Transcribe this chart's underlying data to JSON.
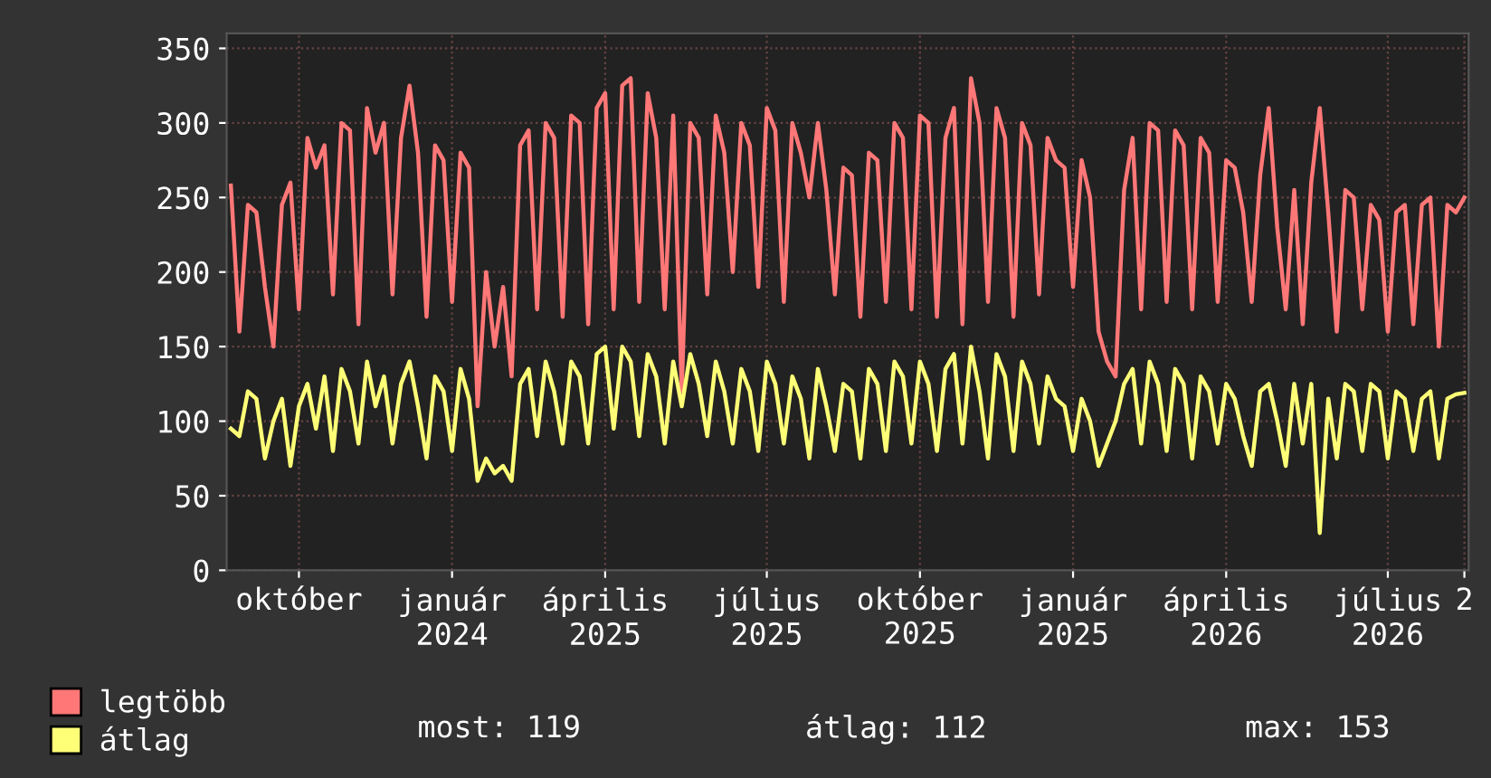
{
  "chart_data": {
    "type": "line",
    "categories": [
      null,
      null,
      null,
      null,
      null,
      null,
      null,
      null,
      "október",
      null,
      null,
      null,
      null,
      null,
      null,
      null,
      null,
      null,
      null,
      null,
      null,
      null,
      null,
      null,
      null,
      null,
      "január\n2024",
      null,
      null,
      null,
      null,
      null,
      null,
      null,
      null,
      null,
      null,
      null,
      null,
      null,
      null,
      null,
      null,
      null,
      "április\n2025",
      null,
      null,
      null,
      null,
      null,
      null,
      null,
      null,
      null,
      null,
      null,
      null,
      null,
      null,
      null,
      null,
      null,
      null,
      "július\n2025",
      null,
      null,
      null,
      null,
      null,
      null,
      null,
      null,
      null,
      null,
      null,
      null,
      null,
      null,
      null,
      null,
      null,
      "október\n2025",
      null,
      null,
      null,
      null,
      null,
      null,
      null,
      null,
      null,
      null,
      null,
      null,
      null,
      null,
      null,
      null,
      null,
      "január\n2025",
      null,
      null,
      null,
      null,
      null,
      null,
      null,
      null,
      null,
      null,
      null,
      null,
      null,
      null,
      null,
      null,
      null,
      "április\n2026",
      null,
      null,
      null,
      null,
      null,
      null,
      null,
      null,
      null,
      null,
      null,
      null,
      null,
      null,
      null,
      null,
      null,
      null,
      "július\n2026",
      null,
      null,
      null,
      null,
      null,
      null,
      null,
      null,
      "2"
    ],
    "series": [
      {
        "name": "legtöbb",
        "color": "#ff7777",
        "values": [
          258,
          160,
          245,
          240,
          190,
          150,
          245,
          260,
          175,
          290,
          270,
          285,
          185,
          300,
          295,
          165,
          310,
          280,
          300,
          185,
          290,
          325,
          280,
          170,
          285,
          275,
          180,
          280,
          270,
          110,
          200,
          150,
          190,
          130,
          285,
          295,
          175,
          300,
          290,
          170,
          305,
          300,
          165,
          310,
          320,
          175,
          325,
          330,
          180,
          320,
          290,
          175,
          305,
          120,
          300,
          290,
          185,
          305,
          280,
          200,
          300,
          285,
          190,
          310,
          295,
          180,
          300,
          280,
          250,
          300,
          255,
          185,
          270,
          265,
          170,
          280,
          275,
          180,
          300,
          290,
          175,
          305,
          300,
          170,
          290,
          310,
          165,
          330,
          300,
          180,
          310,
          290,
          170,
          300,
          285,
          185,
          290,
          275,
          270,
          190,
          275,
          250,
          160,
          140,
          130,
          255,
          290,
          175,
          300,
          295,
          180,
          295,
          285,
          175,
          290,
          280,
          180,
          275,
          270,
          240,
          180,
          265,
          310,
          230,
          175,
          255,
          165,
          260,
          310,
          240,
          160,
          255,
          250,
          175,
          245,
          235,
          160,
          240,
          245,
          165,
          245,
          250,
          150,
          245,
          240,
          250
        ]
      },
      {
        "name": "átlag",
        "color": "#ffff77",
        "values": [
          95,
          90,
          120,
          115,
          75,
          100,
          115,
          70,
          110,
          125,
          95,
          130,
          80,
          135,
          120,
          85,
          140,
          110,
          130,
          85,
          125,
          140,
          110,
          75,
          130,
          120,
          80,
          135,
          115,
          60,
          75,
          65,
          70,
          60,
          125,
          135,
          90,
          140,
          120,
          85,
          140,
          130,
          85,
          145,
          150,
          95,
          150,
          140,
          90,
          145,
          130,
          85,
          140,
          110,
          145,
          125,
          90,
          140,
          120,
          85,
          135,
          120,
          80,
          140,
          125,
          85,
          130,
          115,
          75,
          135,
          110,
          80,
          125,
          120,
          75,
          135,
          125,
          80,
          140,
          130,
          85,
          140,
          125,
          80,
          135,
          145,
          85,
          150,
          120,
          75,
          145,
          130,
          80,
          140,
          125,
          85,
          130,
          115,
          110,
          80,
          115,
          100,
          70,
          85,
          100,
          125,
          135,
          85,
          140,
          125,
          80,
          135,
          125,
          75,
          130,
          120,
          85,
          125,
          115,
          90,
          70,
          120,
          125,
          100,
          70,
          125,
          85,
          125,
          25,
          115,
          75,
          125,
          120,
          80,
          125,
          120,
          75,
          120,
          115,
          80,
          115,
          120,
          75,
          115,
          118,
          119
        ]
      }
    ],
    "ylim": [
      0,
      360
    ],
    "yticks": [
      0,
      50,
      100,
      150,
      200,
      250,
      300,
      350
    ],
    "grid": true,
    "legend": "bottom left",
    "line_style": "solid",
    "annotations": [
      "most: 119",
      "átlag: 112",
      "max: 153"
    ]
  }
}
